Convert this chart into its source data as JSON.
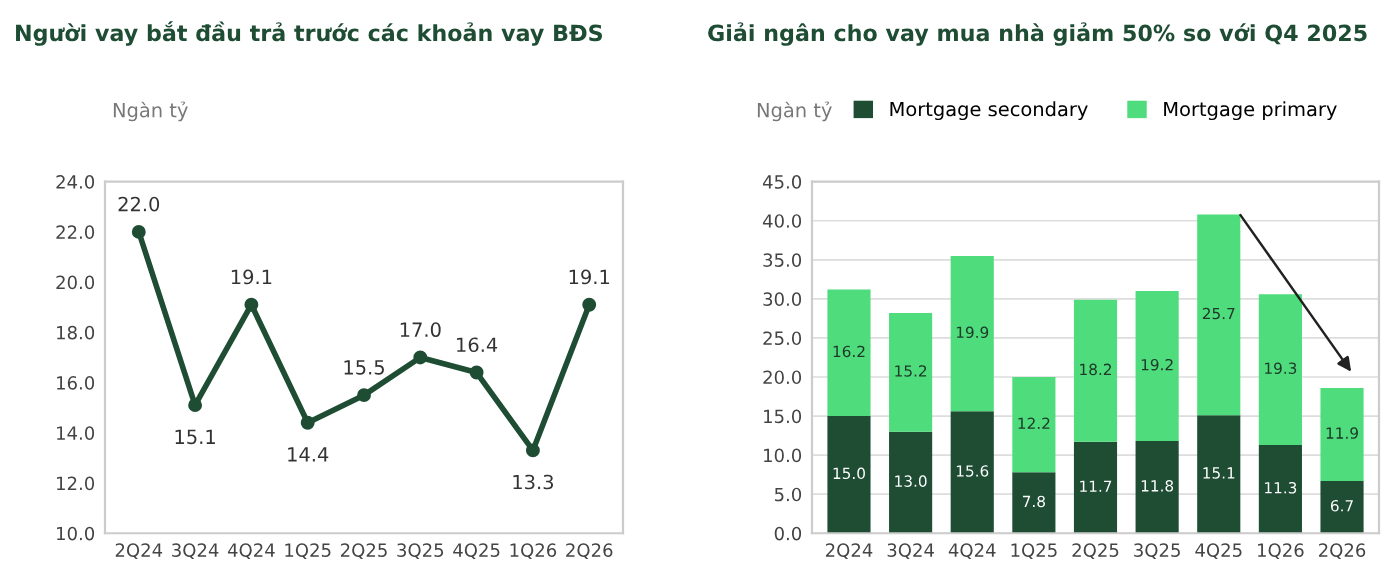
{
  "chart_data": [
    {
      "type": "line",
      "title": "Người vay bắt đầu trả trước các khoản vay BĐS",
      "ylabel": "Ngàn tỷ",
      "categories": [
        "2Q24",
        "3Q24",
        "4Q24",
        "1Q25",
        "2Q25",
        "3Q25",
        "4Q25",
        "1Q26",
        "2Q26"
      ],
      "series": [
        {
          "color": "#1e4d34",
          "values": [
            22.0,
            15.1,
            19.1,
            14.4,
            15.5,
            17.0,
            16.4,
            13.3,
            19.1
          ],
          "value_labels": [
            "22.0",
            "15.1",
            "19.1",
            "14.4",
            "15.5",
            "17.0",
            "16.4",
            "13.3",
            "19.1"
          ]
        }
      ],
      "ylim": [
        10,
        24
      ],
      "yticks": [
        {
          "value": 10,
          "label": "10.0"
        },
        {
          "value": 12,
          "label": "12.0"
        },
        {
          "value": 14,
          "label": "14.0"
        },
        {
          "value": 16,
          "label": "16.0"
        },
        {
          "value": 18,
          "label": "18.0"
        },
        {
          "value": 20,
          "label": "20.0"
        },
        {
          "value": 22,
          "label": "22.0"
        },
        {
          "value": 24,
          "label": "24.0"
        }
      ],
      "marker": "circle",
      "line_style": "solid",
      "legend": false,
      "grid": false
    },
    {
      "type": "bar",
      "stacked": true,
      "title": "Giải ngân cho vay mua nhà giảm 50% so với Q4 2025",
      "ylabel": "Ngàn tỷ",
      "categories": [
        "2Q24",
        "3Q24",
        "4Q24",
        "1Q25",
        "2Q25",
        "3Q25",
        "4Q25",
        "1Q26",
        "2Q26"
      ],
      "series": [
        {
          "name": "Mortgage secondary",
          "color": "#1e4d34",
          "values": [
            15.0,
            13.0,
            15.6,
            7.8,
            11.7,
            11.8,
            15.1,
            11.3,
            6.7
          ],
          "value_labels": [
            "15.0",
            "13.0",
            "15.6",
            "7.8",
            "11.7",
            "11.8",
            "15.1",
            "11.3",
            "6.7"
          ]
        },
        {
          "name": "Mortgage primary",
          "color": "#4fdc7c",
          "values": [
            16.2,
            15.2,
            19.9,
            12.2,
            18.2,
            19.2,
            25.7,
            19.3,
            11.9
          ],
          "value_labels": [
            "16.2",
            "15.2",
            "19.9",
            "12.2",
            "18.2",
            "19.2",
            "25.7",
            "19.3",
            "11.9"
          ]
        }
      ],
      "ylim": [
        0,
        45
      ],
      "yticks": [
        {
          "value": 0,
          "label": "0.0"
        },
        {
          "value": 5,
          "label": "5.0"
        },
        {
          "value": 10,
          "label": "10.0"
        },
        {
          "value": 15,
          "label": "15.0"
        },
        {
          "value": 20,
          "label": "20.0"
        },
        {
          "value": 25,
          "label": "25.0"
        },
        {
          "value": 30,
          "label": "30.0"
        },
        {
          "value": 35,
          "label": "35.0"
        },
        {
          "value": 40,
          "label": "40.0"
        },
        {
          "value": 45,
          "label": "45.0"
        }
      ],
      "legend": "top",
      "grid": "y"
    }
  ]
}
